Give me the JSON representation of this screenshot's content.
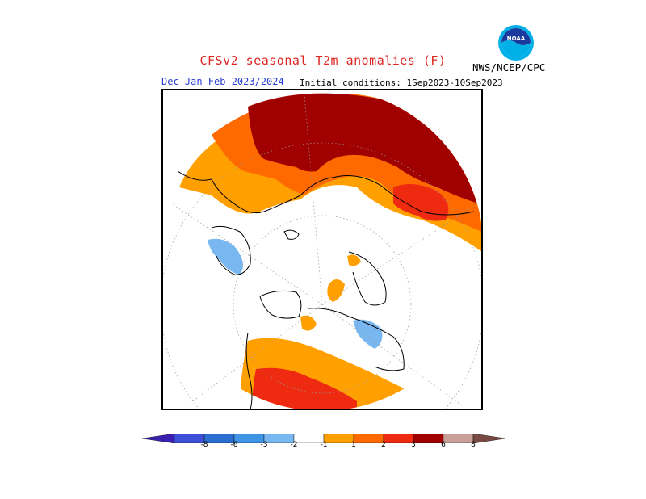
{
  "header": {
    "title": "CFSv2 seasonal T2m anomalies (F)",
    "season": "Dec-Jan-Feb 2023/2024",
    "initial_conditions": "Initial conditions: 1Sep2023-10Sep2023",
    "agency": "NWS/NCEP/CPC",
    "logo_text": "NOAA"
  },
  "colors": {
    "title": "#e0241f",
    "season": "#2b3fd6"
  },
  "legend": {
    "bins": [
      {
        "color": "#3a1fb0"
      },
      {
        "color": "#3e4fd8"
      },
      {
        "color": "#2a6ed0"
      },
      {
        "color": "#3f94e6"
      },
      {
        "color": "#79b7f0"
      },
      {
        "color": "#ffffff"
      },
      {
        "color": "#ffa000"
      },
      {
        "color": "#ff6a00"
      },
      {
        "color": "#ee2a10"
      },
      {
        "color": "#a00000"
      },
      {
        "color": "#c9a098"
      },
      {
        "color": "#7a4a42"
      }
    ],
    "tick_labels": [
      "-8",
      "-6",
      "-3",
      "-2",
      "-1",
      "1",
      "2",
      "3",
      "6",
      "8"
    ]
  }
}
